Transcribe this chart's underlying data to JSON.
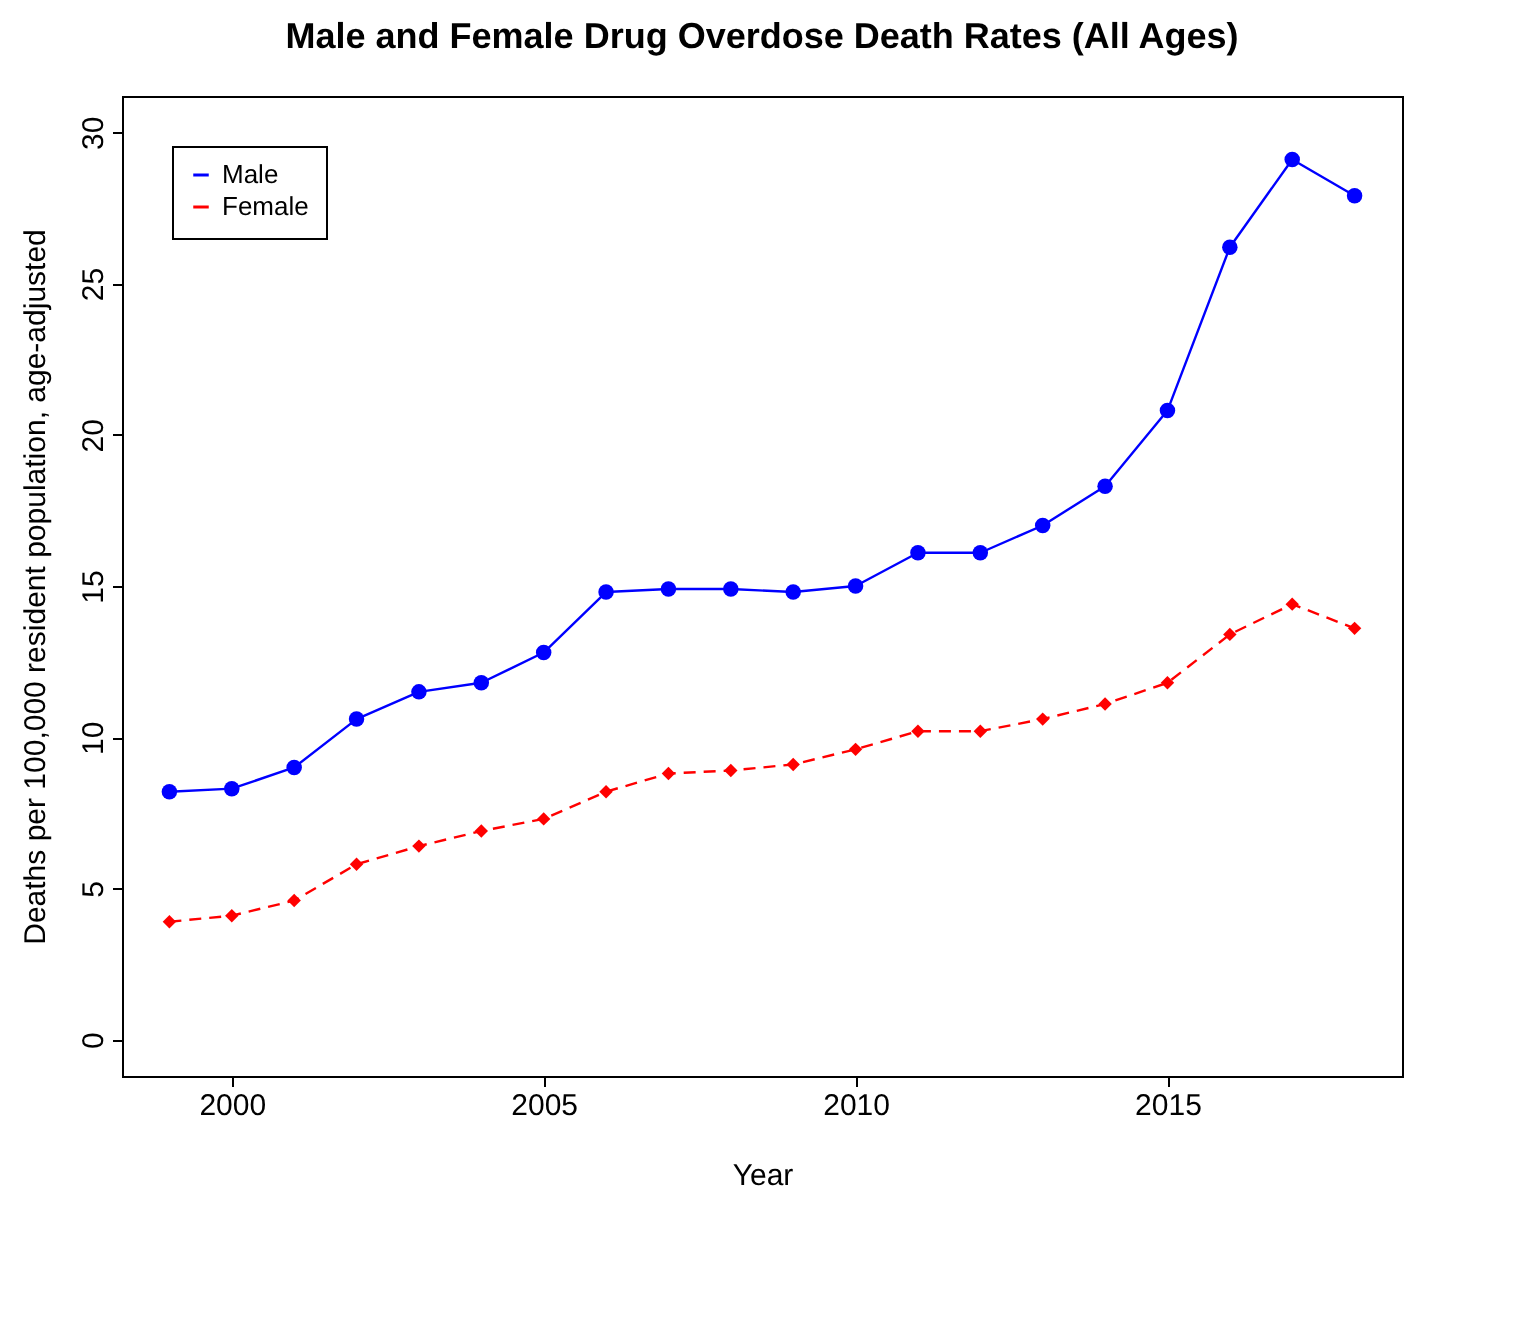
{
  "chart_data": {
    "type": "line",
    "title": "Male and Female Drug Overdose Death Rates (All Ages)",
    "xlabel": "Year",
    "ylabel": "Deaths per 100,000 resident population, age-adjusted",
    "x": [
      1999,
      2000,
      2001,
      2002,
      2003,
      2004,
      2005,
      2006,
      2007,
      2008,
      2009,
      2010,
      2011,
      2012,
      2013,
      2014,
      2015,
      2016,
      2017,
      2018
    ],
    "series": [
      {
        "name": "Male",
        "color": "#0000ff",
        "marker": "circle",
        "line_style": "solid",
        "values": [
          8.2,
          8.3,
          9.0,
          10.6,
          11.5,
          11.8,
          12.8,
          14.8,
          14.9,
          14.9,
          14.8,
          15.0,
          16.1,
          16.1,
          17.0,
          18.3,
          20.8,
          26.2,
          29.1,
          27.9
        ]
      },
      {
        "name": "Female",
        "color": "#ff0000",
        "marker": "diamond",
        "line_style": "dashed",
        "values": [
          3.9,
          4.1,
          4.6,
          5.8,
          6.4,
          6.9,
          7.3,
          8.2,
          8.8,
          8.9,
          9.1,
          9.6,
          10.2,
          10.2,
          10.6,
          11.1,
          11.8,
          13.4,
          14.4,
          13.6
        ]
      }
    ],
    "xlim": [
      1998.24,
      2018.76
    ],
    "xticks": [
      2000,
      2005,
      2010,
      2015
    ],
    "ylim": [
      -1.2,
      31.2
    ],
    "yticks": [
      0,
      5,
      10,
      15,
      20,
      25,
      30
    ],
    "grid": false,
    "legend": "top left"
  }
}
